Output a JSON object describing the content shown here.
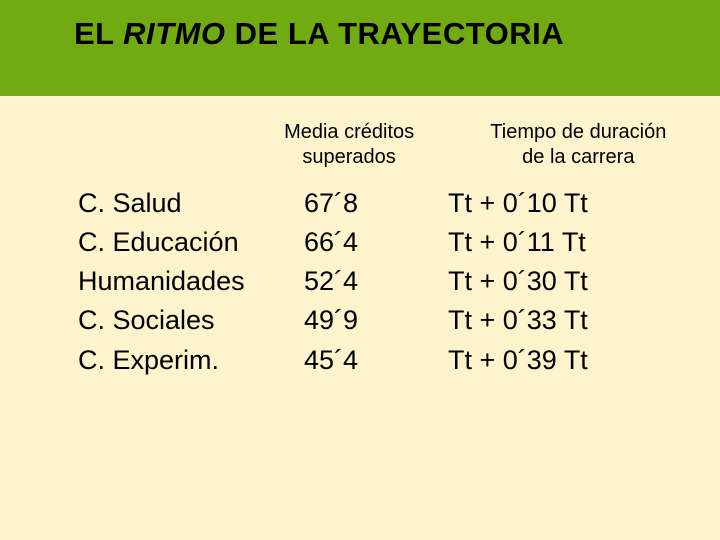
{
  "colors": {
    "background": "#fdf3cc",
    "title_bar": "#71ab11",
    "text": "#000000"
  },
  "title": {
    "pre": "EL ",
    "italic": "RITMO",
    "post": " DE LA TRAYECTORIA"
  },
  "headers": {
    "col1_line1": "Media créditos",
    "col1_line2": "superados",
    "col2_line1": "Tiempo de duración",
    "col2_line2": "de la carrera"
  },
  "rows": [
    {
      "category": "C. Salud",
      "credits": "67´8",
      "duration": "Tt +  0´10 Tt"
    },
    {
      "category": "C. Educación",
      "credits": "66´4",
      "duration": "Tt +  0´11 Tt"
    },
    {
      "category": "Humanidades",
      "credits": "52´4",
      "duration": "Tt +  0´30 Tt"
    },
    {
      "category": "C. Sociales",
      "credits": "49´9",
      "duration": "Tt +  0´33 Tt"
    },
    {
      "category": "C. Experim.",
      "credits": "45´4",
      "duration": "Tt +  0´39 Tt"
    }
  ]
}
